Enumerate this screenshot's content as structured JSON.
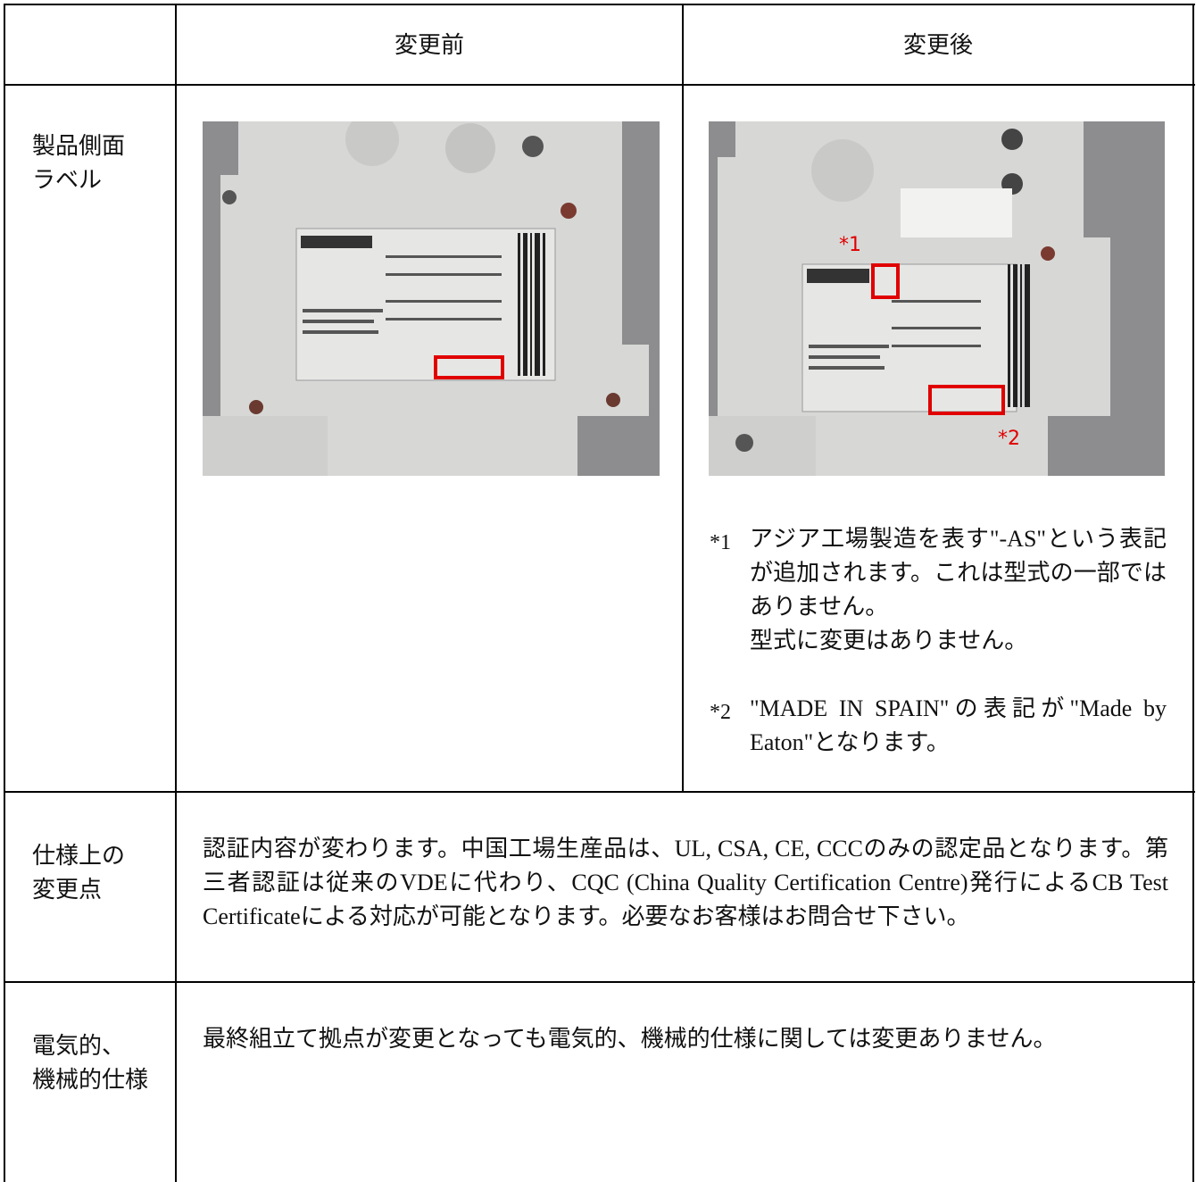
{
  "table": {
    "header": {
      "before": "変更前",
      "after": "変更後"
    },
    "rows": [
      {
        "label": [
          "製品側面",
          "ラベル"
        ],
        "photo_callouts": [
          "*1",
          "*2"
        ],
        "notes": [
          {
            "marker": "*1",
            "paragraphs": [
              "アジア工場製造を表す\"-AS\"という表記が追加されます。これは型式の一部ではありません。",
              "型式に変更はありません。"
            ]
          },
          {
            "marker": "*2",
            "paragraphs": [
              "\"MADE IN SPAIN\"の表記が\"Made by Eaton\"となります。"
            ]
          }
        ]
      },
      {
        "label": [
          "仕様上の",
          "変更点"
        ],
        "text": "認証内容が変わります。中国工場生産品は、UL, CSA, CE, CCCのみの認定品となります。第三者認証は従来のVDEに代わり、CQC (China Quality Certification Centre)発行によるCB Test Certificateによる対応が可能となります。必要なお客様はお問合せ下さい。"
      },
      {
        "label": [
          "電気的、",
          "機械的仕様"
        ],
        "text": "最終組立て拠点が変更となっても電気的、機械的仕様に関しては変更ありません。"
      }
    ]
  }
}
